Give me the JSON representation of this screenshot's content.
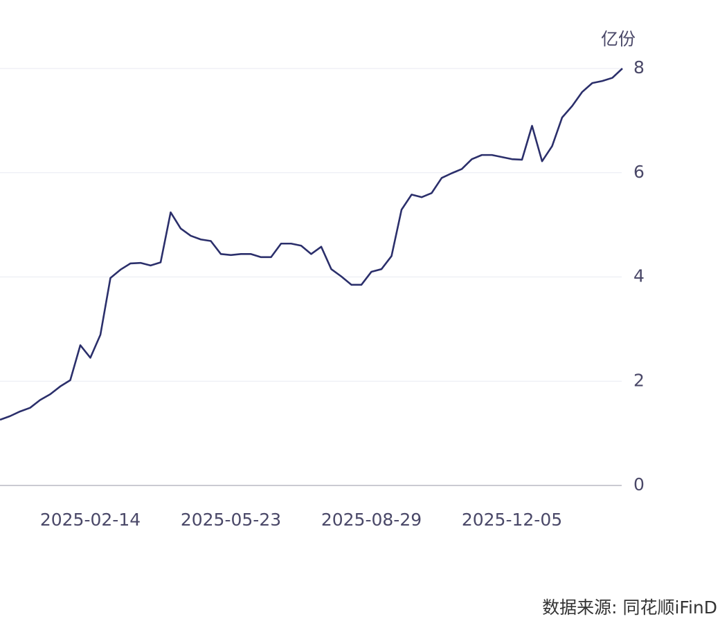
{
  "chart_data": {
    "type": "line",
    "unit": "亿份",
    "source": "数据来源: 同花顺iFinD",
    "categories": [
      null,
      null,
      null,
      null,
      null,
      null,
      null,
      null,
      null,
      "2025-02-14",
      null,
      null,
      null,
      null,
      null,
      null,
      null,
      null,
      null,
      null,
      null,
      null,
      null,
      "2025-05-23",
      null,
      null,
      null,
      null,
      null,
      null,
      null,
      null,
      null,
      null,
      null,
      null,
      null,
      "2025-08-29",
      null,
      null,
      null,
      null,
      null,
      null,
      null,
      null,
      null,
      null,
      null,
      null,
      null,
      "2025-12-05",
      null,
      null,
      null,
      null,
      null,
      null,
      null,
      null,
      null,
      null,
      null
    ],
    "series": [
      {
        "color": "#2b2f6b",
        "values": [
          1.26,
          1.33,
          1.42,
          1.49,
          1.64,
          1.75,
          1.9,
          2.02,
          2.69,
          2.45,
          2.89,
          3.98,
          4.14,
          4.26,
          4.27,
          4.22,
          4.28,
          5.24,
          4.93,
          4.79,
          4.72,
          4.69,
          4.44,
          4.42,
          4.44,
          4.44,
          4.38,
          4.38,
          4.64,
          4.64,
          4.6,
          4.44,
          4.58,
          4.15,
          4.01,
          3.85,
          3.85,
          4.1,
          4.15,
          4.4,
          5.29,
          5.58,
          5.53,
          5.61,
          5.9,
          5.99,
          6.07,
          6.26,
          6.34,
          6.34,
          6.3,
          6.26,
          6.25,
          6.9,
          6.22,
          6.51,
          7.06,
          7.28,
          7.55,
          7.72,
          7.76,
          7.82,
          8.0
        ]
      }
    ],
    "ylim": [
      0,
      8
    ],
    "yticks": [
      0,
      2,
      4,
      6,
      8
    ],
    "grid": true
  }
}
